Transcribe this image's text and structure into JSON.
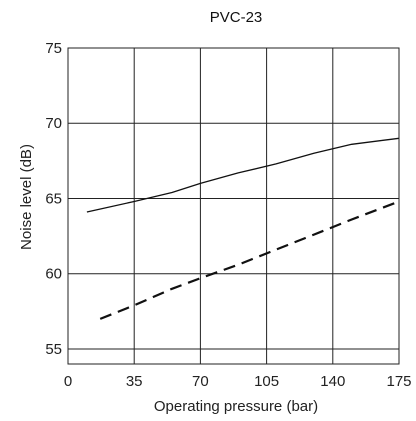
{
  "chart_data": {
    "type": "line",
    "title": "PVC-23",
    "xlabel": "Operating pressure (bar)",
    "ylabel": "Noise level (dB)",
    "xlim": [
      0,
      175
    ],
    "ylim": [
      54,
      75
    ],
    "x_ticks": [
      "0",
      "35",
      "70",
      "105",
      "140",
      "175"
    ],
    "y_ticks": [
      "55",
      "60",
      "65",
      "70",
      "75"
    ],
    "grid": true,
    "legend": "none",
    "series": [
      {
        "style": "solid",
        "color": "#111111",
        "x": [
          10,
          35,
          55,
          70,
          90,
          110,
          130,
          150,
          175
        ],
        "y": [
          64.1,
          64.8,
          65.4,
          66.0,
          66.7,
          67.3,
          68.0,
          68.6,
          69.0
        ]
      },
      {
        "style": "dashed",
        "color": "#111111",
        "x": [
          17,
          35,
          55,
          70,
          90,
          110,
          130,
          150,
          175
        ],
        "y": [
          57.0,
          57.9,
          59.0,
          59.7,
          60.6,
          61.6,
          62.6,
          63.6,
          64.8
        ]
      }
    ]
  }
}
